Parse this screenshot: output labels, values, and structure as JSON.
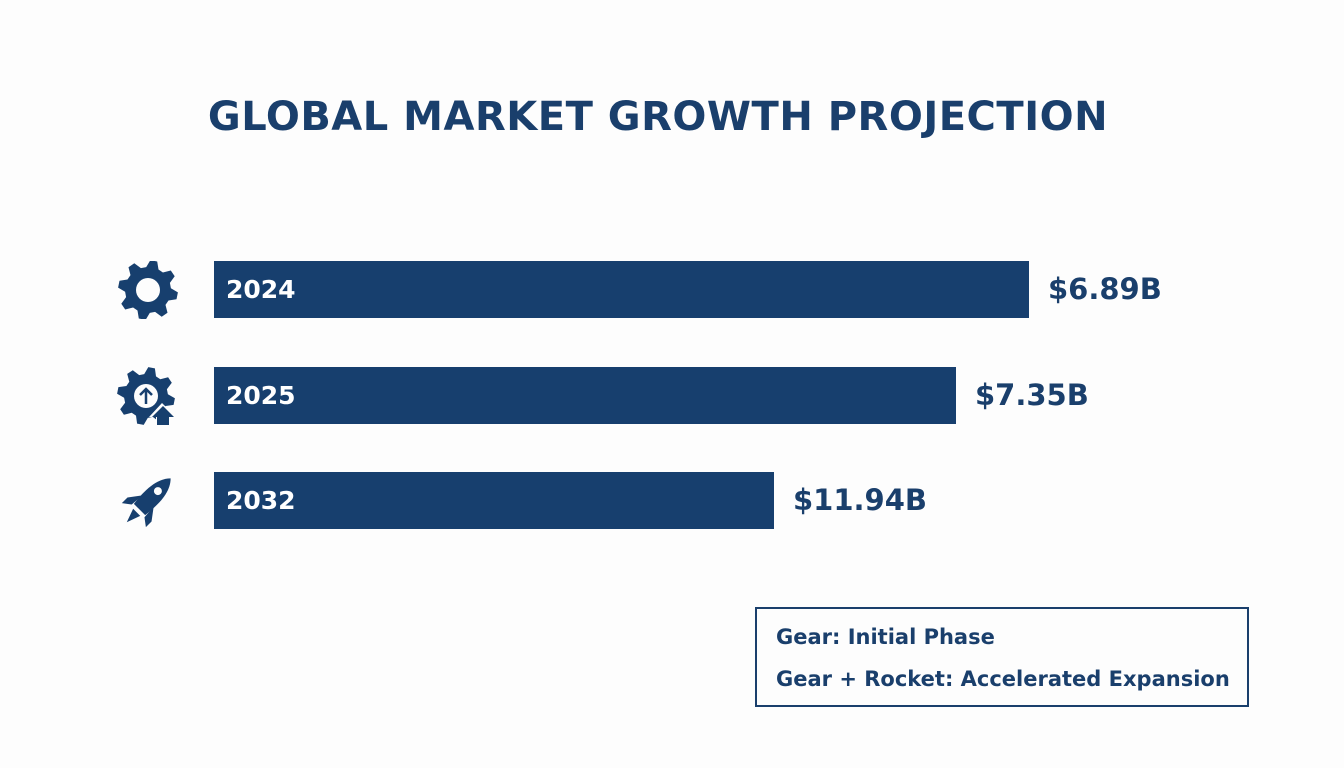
{
  "chart_data": {
    "type": "bar",
    "orientation": "horizontal",
    "title": "GLOBAL MARKET GROWTH PROJECTION",
    "categories": [
      "2024",
      "2025",
      "2032"
    ],
    "values": [
      6.89,
      7.35,
      11.94
    ],
    "value_labels": [
      "$6.89B",
      "$7.35B",
      "$11.94B"
    ],
    "unit": "USD billions",
    "icons": [
      "gear-icon",
      "gear-with-up-arrow-icon",
      "rocket-icon"
    ],
    "bar_color": "#173f6e",
    "grid": false,
    "legend": {
      "placement": "bottom-right",
      "entries": [
        "Gear: Initial Phase",
        "Gear + Rocket:  Accelerated Expansion"
      ]
    }
  }
}
